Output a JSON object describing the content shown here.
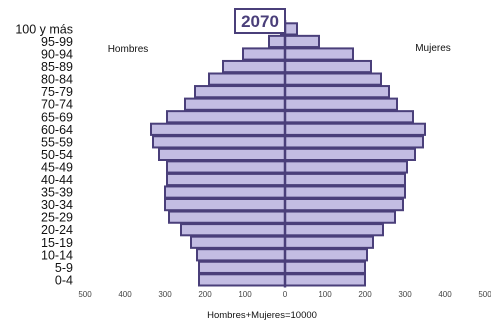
{
  "chart_data": {
    "type": "bar",
    "title": "2070",
    "left_label": "Hombres",
    "right_label": "Mujeres",
    "xlabel": "Hombres+Mujeres=10000",
    "xlim": [
      -500,
      500
    ],
    "x_ticks": [
      -500,
      -400,
      -300,
      -200,
      -100,
      0,
      100,
      200,
      300,
      400,
      500
    ],
    "x_tick_labels": [
      "500",
      "400",
      "300",
      "200",
      "100",
      "0",
      "100",
      "200",
      "300",
      "400",
      "500"
    ],
    "categories": [
      "0-4",
      "5-9",
      "10-14",
      "15-19",
      "20-24",
      "25-29",
      "30-34",
      "35-39",
      "40-44",
      "45-49",
      "50-54",
      "55-59",
      "60-64",
      "65-69",
      "70-74",
      "75-79",
      "80-84",
      "85-89",
      "90-94",
      "95-99",
      "100 y más"
    ],
    "series": [
      {
        "name": "Hombres",
        "values": [
          215,
          215,
          220,
          235,
          260,
          290,
          300,
          300,
          295,
          295,
          315,
          330,
          335,
          295,
          250,
          225,
          190,
          155,
          105,
          40,
          10
        ]
      },
      {
        "name": "Mujeres",
        "values": [
          200,
          200,
          205,
          220,
          245,
          275,
          295,
          300,
          300,
          305,
          325,
          345,
          350,
          320,
          280,
          260,
          240,
          215,
          170,
          85,
          30
        ]
      }
    ],
    "colors": {
      "bar_fill": "#c3bde3",
      "bar_stroke": "#4a3f7a",
      "axis": "#4a3f7a"
    }
  }
}
